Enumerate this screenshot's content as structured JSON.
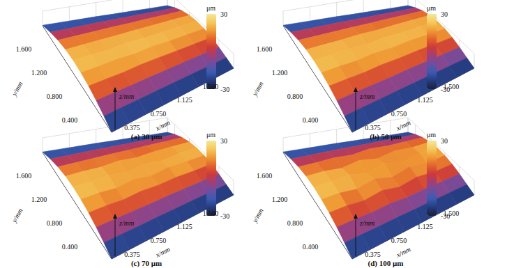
{
  "chart_data": [
    {
      "type": "surface",
      "title": "(a) 30 μm",
      "x_label": "x/mm",
      "y_label": "y/mm",
      "z_label": "z/mm",
      "x": [
        0,
        0.25,
        0.5,
        0.75,
        1,
        1.25,
        1.5,
        1.75
      ],
      "y": [
        0,
        0.2,
        0.4,
        0.6,
        0.8,
        1,
        1.2,
        1.4,
        1.6,
        1.8
      ],
      "z": [
        [
          -30,
          -30,
          -30,
          -30,
          -30,
          -30,
          -30,
          -30
        ],
        [
          -12,
          -12,
          -13,
          -13,
          -14,
          -14,
          -15,
          -15
        ],
        [
          3,
          3,
          2,
          2,
          1,
          1,
          0,
          -1
        ],
        [
          14,
          14,
          13,
          16,
          15,
          13,
          12,
          11
        ],
        [
          20,
          20,
          22,
          18,
          23,
          19,
          19,
          18
        ],
        [
          22,
          22,
          19,
          24,
          20,
          21,
          21,
          20
        ],
        [
          18,
          18,
          18,
          17,
          18,
          17,
          17,
          16
        ],
        [
          8,
          8,
          8,
          8,
          7,
          7,
          6,
          6
        ],
        [
          -8,
          -8,
          -8,
          -8,
          -9,
          -9,
          -10,
          -10
        ],
        [
          -28,
          -28,
          -28,
          -28,
          -29,
          -29,
          -30,
          -30
        ]
      ],
      "xlim": [
        0,
        1.75
      ],
      "ylim": [
        0,
        1.8
      ],
      "xticks": [
        0.375,
        {
          "value": 0.75,
          "label": "0.750"
        },
        1.125,
        {
          "value": 1.5,
          "label": "1.500"
        }
      ],
      "yticks": [
        {
          "value": 0.4,
          "label": "0.400"
        },
        {
          "value": 0.8,
          "label": "0.800"
        },
        {
          "value": 1.2,
          "label": "1.200"
        },
        {
          "value": 1.6,
          "label": "1.600"
        }
      ],
      "colorbar": {
        "label": "μm",
        "range": [
          -30,
          30
        ],
        "ticks": [
          -30,
          30
        ],
        "colors": [
          "#1b2038",
          "#253a7d",
          "#3a5bb0",
          "#6b4fa3",
          "#a23e78",
          "#cc3a3a",
          "#e2622c",
          "#ef9a35",
          "#f4c95a",
          "#f6e79a"
        ]
      },
      "grid": true
    },
    {
      "type": "surface",
      "title": "(b) 50 μm",
      "x_label": "x/mm",
      "y_label": "y/mm",
      "z_label": "z/mm",
      "x": [
        0,
        0.25,
        0.5,
        0.75,
        1,
        1.25,
        1.5,
        1.75
      ],
      "y": [
        0,
        0.2,
        0.4,
        0.6,
        0.8,
        1,
        1.2,
        1.4,
        1.6,
        1.8
      ],
      "z": [
        [
          -30,
          -30,
          -30,
          -30,
          -30,
          -30,
          -30,
          -30
        ],
        [
          -12,
          -12,
          -13,
          -13,
          -14,
          -14,
          -15,
          -16
        ],
        [
          3,
          3,
          2,
          1,
          2,
          1,
          0,
          -1
        ],
        [
          14,
          14,
          12,
          15,
          13,
          14,
          12,
          11
        ],
        [
          20,
          20,
          17,
          22,
          18,
          21,
          19,
          18
        ],
        [
          22,
          22,
          23,
          18,
          23,
          20,
          21,
          20
        ],
        [
          18,
          18,
          17,
          19,
          16,
          17,
          17,
          16
        ],
        [
          8,
          8,
          8,
          8,
          7,
          7,
          6,
          6
        ],
        [
          -8,
          -8,
          -8,
          -8,
          -9,
          -9,
          -10,
          -10
        ],
        [
          -28,
          -28,
          -28,
          -28,
          -29,
          -29,
          -30,
          -30
        ]
      ],
      "xlim": [
        0,
        1.75
      ],
      "ylim": [
        0,
        1.8
      ],
      "xticks": [
        0.375,
        {
          "value": 0.75,
          "label": "0.750"
        },
        1.125,
        {
          "value": 1.5,
          "label": "1.500"
        }
      ],
      "yticks": [
        {
          "value": 0.4,
          "label": "0.400"
        },
        {
          "value": 0.8,
          "label": "0.800"
        },
        {
          "value": 1.2,
          "label": "1.200"
        },
        {
          "value": 1.6,
          "label": "1.600"
        }
      ],
      "colorbar": {
        "label": "μm",
        "range": [
          -30,
          30
        ],
        "ticks": [
          -30,
          30
        ],
        "colors": [
          "#1b2038",
          "#253a7d",
          "#3a5bb0",
          "#6b4fa3",
          "#a23e78",
          "#cc3a3a",
          "#e2622c",
          "#ef9a35",
          "#f4c95a",
          "#f6e79a"
        ]
      },
      "grid": true
    },
    {
      "type": "surface",
      "title": "(c) 70 μm",
      "x_label": "x/mm",
      "y_label": "y/mm",
      "z_label": "z/mm",
      "x": [
        0,
        0.25,
        0.5,
        0.75,
        1,
        1.25,
        1.5,
        1.75
      ],
      "y": [
        0,
        0.2,
        0.4,
        0.6,
        0.8,
        1,
        1.2,
        1.4,
        1.6,
        1.8
      ],
      "z": [
        [
          -30,
          -30,
          -30,
          -30,
          -30,
          -30,
          -30,
          -30
        ],
        [
          -12,
          -12,
          -13,
          -13,
          -14,
          -14,
          -15,
          -16
        ],
        [
          3,
          3,
          2,
          1,
          2,
          1,
          0,
          -1
        ],
        [
          14,
          14,
          10,
          16,
          12,
          15,
          12,
          11
        ],
        [
          20,
          20,
          14,
          24,
          12,
          22,
          19,
          18
        ],
        [
          22,
          22,
          24,
          12,
          25,
          14,
          21,
          20
        ],
        [
          18,
          18,
          15,
          20,
          13,
          17,
          17,
          16
        ],
        [
          8,
          8,
          8,
          8,
          7,
          7,
          6,
          6
        ],
        [
          -8,
          -8,
          -8,
          -8,
          -9,
          -9,
          -10,
          -10
        ],
        [
          -28,
          -28,
          -28,
          -28,
          -29,
          -29,
          -30,
          -30
        ]
      ],
      "xlim": [
        0,
        1.75
      ],
      "ylim": [
        0,
        1.8
      ],
      "xticks": [
        0.375,
        {
          "value": 0.75,
          "label": "0.750"
        },
        1.125,
        {
          "value": 1.5,
          "label": "1.500"
        }
      ],
      "yticks": [
        {
          "value": 0.4,
          "label": "0.400"
        },
        {
          "value": 0.8,
          "label": "0.800"
        },
        {
          "value": 1.2,
          "label": "1.200"
        },
        {
          "value": 1.6,
          "label": "1.600"
        }
      ],
      "colorbar": {
        "label": "μm",
        "range": [
          -30,
          30
        ],
        "ticks": [
          -30,
          30
        ],
        "colors": [
          "#1b2038",
          "#253a7d",
          "#3a5bb0",
          "#6b4fa3",
          "#a23e78",
          "#cc3a3a",
          "#e2622c",
          "#ef9a35",
          "#f4c95a",
          "#f6e79a"
        ]
      },
      "grid": true
    },
    {
      "type": "surface",
      "title": "(d) 100 μm",
      "x_label": "x/mm",
      "y_label": "y/mm",
      "z_label": "z/mm",
      "x": [
        0,
        0.25,
        0.5,
        0.75,
        1,
        1.25,
        1.5,
        1.75
      ],
      "y": [
        0,
        0.2,
        0.4,
        0.6,
        0.8,
        1,
        1.2,
        1.4,
        1.6,
        1.8
      ],
      "z": [
        [
          -30,
          -30,
          -30,
          -30,
          -30,
          -30,
          -30,
          -30
        ],
        [
          -12,
          -12,
          -13,
          -13,
          -14,
          -14,
          -15,
          -16
        ],
        [
          3,
          3,
          0,
          4,
          -2,
          1,
          0,
          -1
        ],
        [
          14,
          14,
          6,
          18,
          4,
          16,
          8,
          11
        ],
        [
          20,
          20,
          10,
          26,
          6,
          24,
          12,
          18
        ],
        [
          22,
          22,
          26,
          8,
          27,
          6,
          22,
          20
        ],
        [
          18,
          18,
          10,
          22,
          8,
          20,
          14,
          16
        ],
        [
          8,
          8,
          10,
          4,
          12,
          6,
          6,
          6
        ],
        [
          -8,
          -8,
          -8,
          -8,
          -9,
          -9,
          -10,
          -10
        ],
        [
          -28,
          -28,
          -28,
          -28,
          -29,
          -29,
          -30,
          -30
        ]
      ],
      "xlim": [
        0,
        1.75
      ],
      "ylim": [
        0,
        1.8
      ],
      "xticks": [
        0.375,
        {
          "value": 0.75,
          "label": "0.750"
        },
        1.125,
        {
          "value": 1.5,
          "label": "1.500"
        }
      ],
      "yticks": [
        {
          "value": 0.4,
          "label": "0.400"
        },
        {
          "value": 0.8,
          "label": "0.800"
        },
        {
          "value": 1.2,
          "label": "1.200"
        },
        {
          "value": 1.6,
          "label": "1.600"
        }
      ],
      "colorbar": {
        "label": "μm",
        "range": [
          -30,
          30
        ],
        "ticks": [
          -30,
          30
        ],
        "colors": [
          "#1b2038",
          "#253a7d",
          "#3a5bb0",
          "#6b4fa3",
          "#a23e78",
          "#cc3a3a",
          "#e2622c",
          "#ef9a35",
          "#f4c95a",
          "#f6e79a"
        ]
      },
      "grid": true
    }
  ]
}
